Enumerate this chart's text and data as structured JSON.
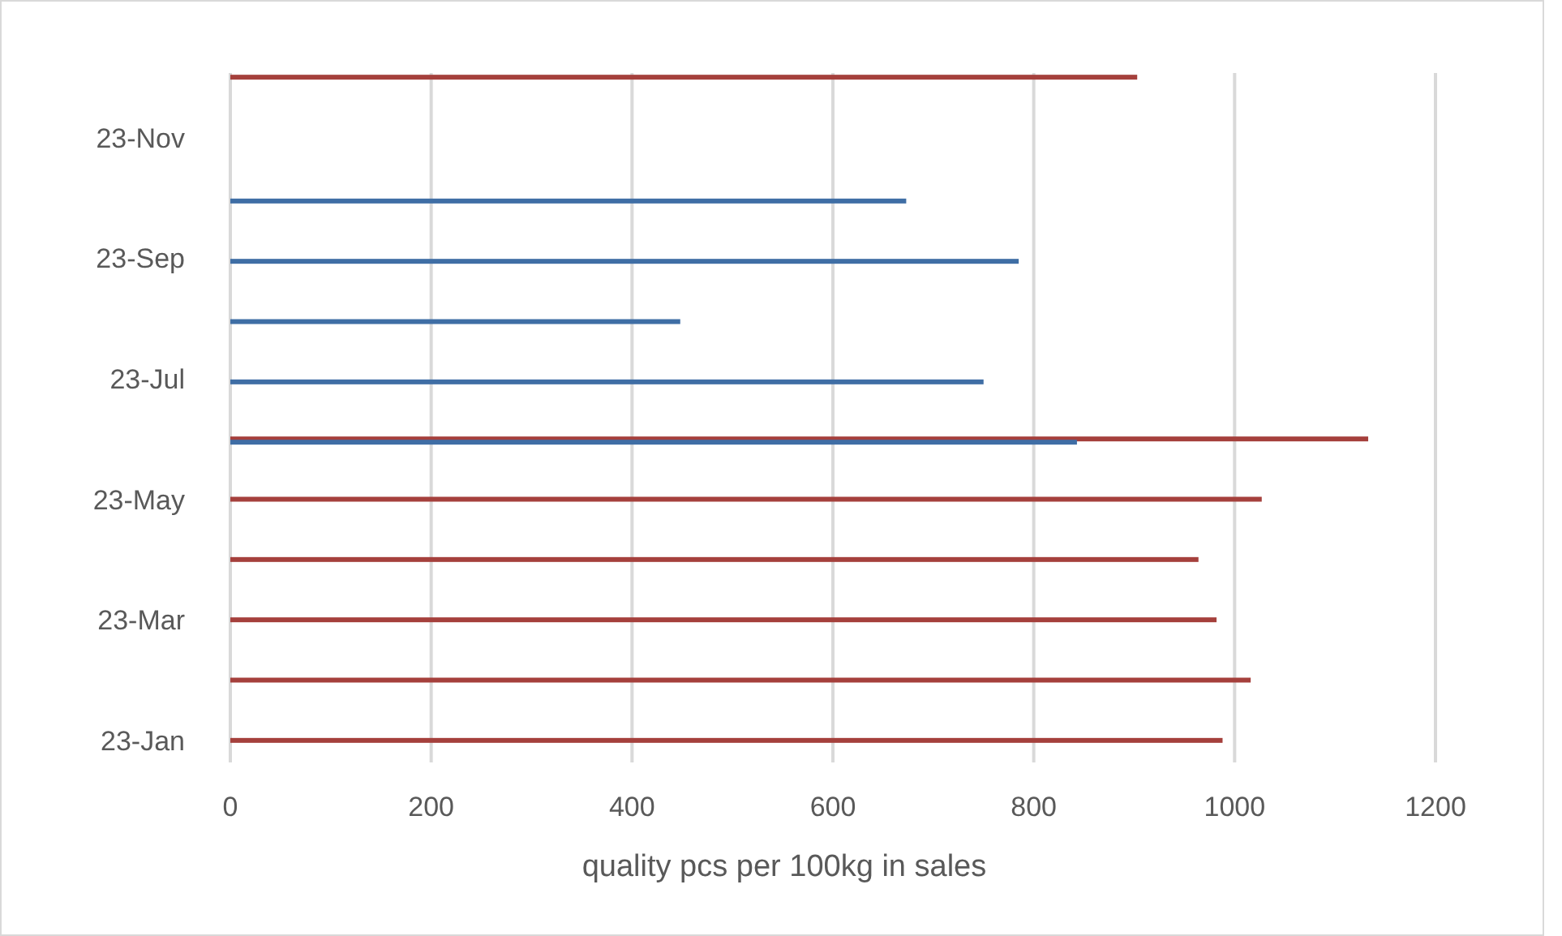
{
  "chart_data": {
    "type": "bar",
    "orientation": "horizontal",
    "xlabel": "quality pcs per 100kg in sales",
    "categories": [
      null,
      "23-Nov",
      null,
      "23-Sep",
      null,
      "23-Jul",
      null,
      "23-May",
      null,
      "23-Mar",
      null,
      "23-Jan"
    ],
    "series": [
      {
        "color": "#a5403c",
        "values": [
          903,
          null,
          null,
          null,
          null,
          null,
          1133,
          1027,
          964,
          982,
          1016,
          988
        ]
      },
      {
        "color": "#3f6ea5",
        "values": [
          null,
          null,
          673,
          785,
          448,
          750,
          843,
          null,
          null,
          null,
          null,
          null
        ]
      }
    ],
    "xlim": [
      0,
      1200
    ],
    "xticks": [
      0,
      200,
      400,
      600,
      800,
      1000,
      1200
    ],
    "grid": "x"
  }
}
